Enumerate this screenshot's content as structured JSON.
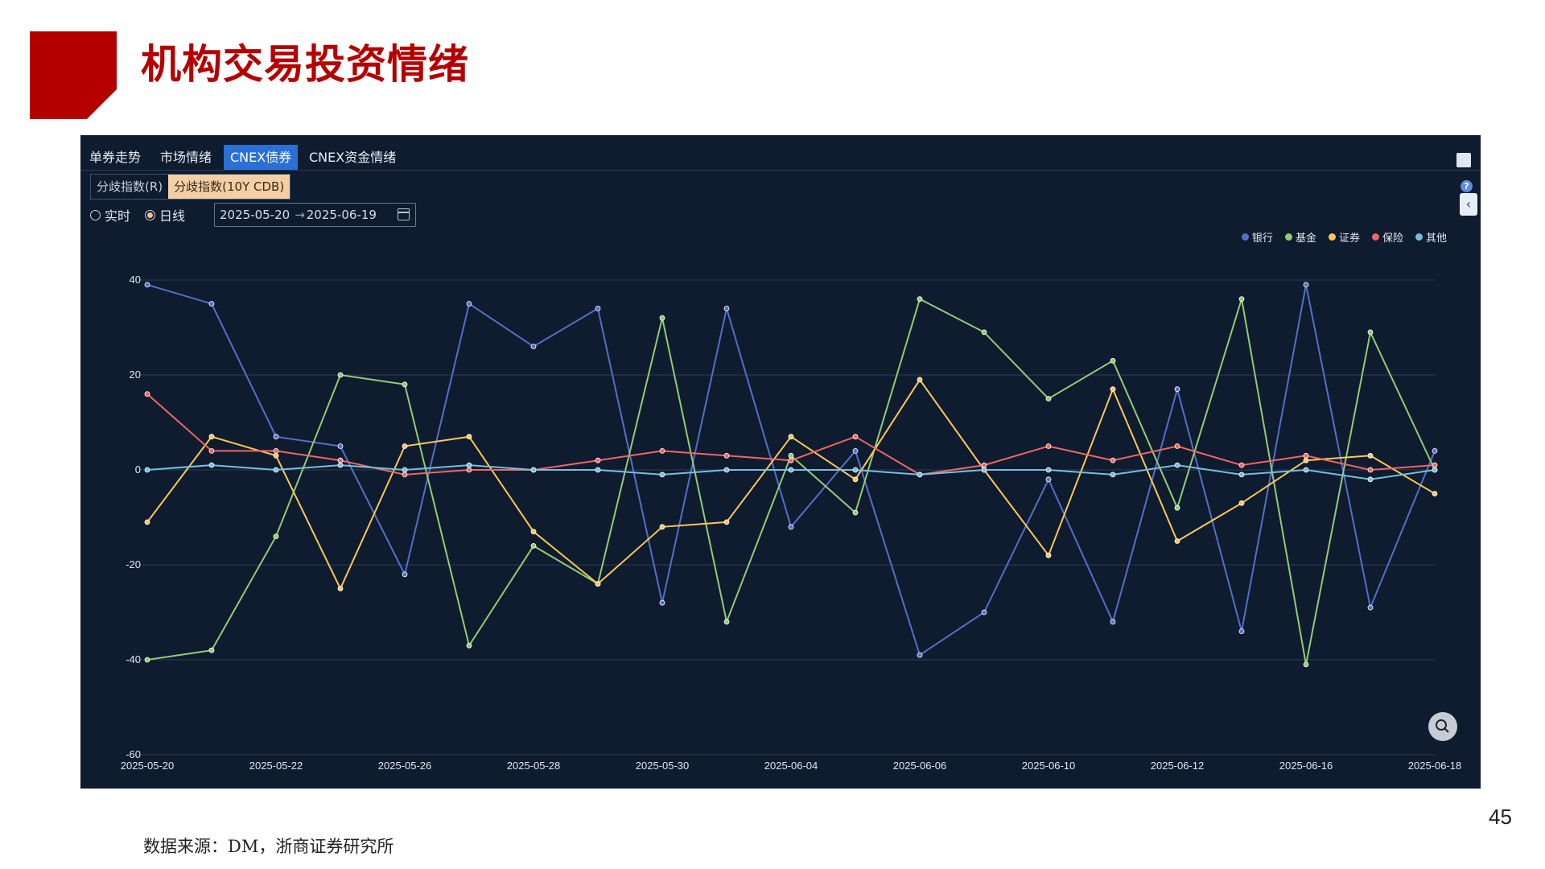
{
  "title": "机构交易投资情绪",
  "page_number": "45",
  "source_note": "数据来源：DM，浙商证券研究所",
  "tabs": [
    {
      "label": "单券走势",
      "active": false
    },
    {
      "label": "市场情绪",
      "active": false
    },
    {
      "label": "CNEX债券",
      "active": true
    },
    {
      "label": "CNEX资金情绪",
      "active": false
    }
  ],
  "subtabs": [
    {
      "label": "分歧指数(R)",
      "active": false
    },
    {
      "label": "分歧指数(10Y CDB)",
      "active": true
    }
  ],
  "modes": [
    {
      "label": "实时",
      "checked": false
    },
    {
      "label": "日线",
      "checked": true
    }
  ],
  "date_range": {
    "start": "2025-05-20",
    "end": "2025-06-19"
  },
  "colors": {
    "title": "#b50000",
    "panel_bg": "#0f1b2f",
    "grid": "#2c3b55"
  },
  "chart_data": {
    "type": "line",
    "ylim": [
      -60,
      40
    ],
    "yticks": [
      -60,
      -40,
      -20,
      0,
      20,
      40
    ],
    "grid": true,
    "legend_position": "top-right",
    "x_tick_labels": [
      "2025-05-20",
      "2025-05-22",
      "2025-05-26",
      "2025-05-28",
      "2025-05-30",
      "2025-06-04",
      "2025-06-06",
      "2025-06-10",
      "2025-06-12",
      "2025-06-16",
      "2025-06-18"
    ],
    "x": [
      "2025-05-20",
      "2025-05-21",
      "2025-05-22",
      "2025-05-23",
      "2025-05-26",
      "2025-05-27",
      "2025-05-28",
      "2025-05-29",
      "2025-05-30",
      "2025-06-03",
      "2025-06-04",
      "2025-06-05",
      "2025-06-06",
      "2025-06-09",
      "2025-06-10",
      "2025-06-11",
      "2025-06-12",
      "2025-06-13",
      "2025-06-16",
      "2025-06-17",
      "2025-06-18"
    ],
    "series": [
      {
        "name": "银行",
        "color": "#5470c6",
        "values": [
          39,
          35,
          7,
          5,
          -22,
          35,
          26,
          34,
          -28,
          34,
          -12,
          4,
          -39,
          -30,
          -2,
          -32,
          17,
          -34,
          39,
          -29,
          4
        ]
      },
      {
        "name": "基金",
        "color": "#91cc75",
        "values": [
          -40,
          -38,
          -14,
          20,
          18,
          -37,
          -16,
          -24,
          32,
          -32,
          3,
          -9,
          36,
          29,
          15,
          23,
          -8,
          36,
          -41,
          29,
          0
        ]
      },
      {
        "name": "证券",
        "color": "#fac858",
        "values": [
          -11,
          7,
          3,
          -25,
          5,
          7,
          -13,
          -24,
          -12,
          -11,
          7,
          -2,
          19,
          0,
          -18,
          17,
          -15,
          -7,
          2,
          3,
          -5
        ]
      },
      {
        "name": "保险",
        "color": "#ee6666",
        "values": [
          16,
          4,
          4,
          2,
          -1,
          0,
          0,
          2,
          4,
          3,
          2,
          7,
          -1,
          1,
          5,
          2,
          5,
          1,
          3,
          0,
          1
        ]
      },
      {
        "name": "其他",
        "color": "#73c0de",
        "values": [
          0,
          1,
          0,
          1,
          0,
          1,
          0,
          0,
          -1,
          0,
          0,
          0,
          -1,
          0,
          0,
          -1,
          1,
          -1,
          0,
          -2,
          0
        ]
      }
    ]
  }
}
